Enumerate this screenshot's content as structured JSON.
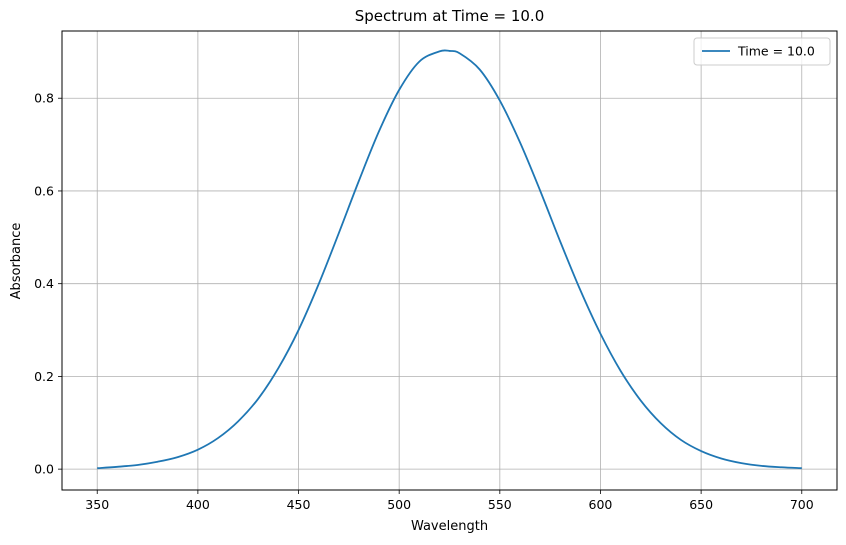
{
  "chart_data": {
    "type": "line",
    "title": "Spectrum at Time = 10.0",
    "xlabel": "Wavelength",
    "ylabel": "Absorbance",
    "xlim": [
      332.5,
      717.5
    ],
    "ylim": [
      -0.045,
      0.945
    ],
    "xticks": [
      350,
      400,
      450,
      500,
      550,
      600,
      650,
      700
    ],
    "yticks": [
      0.0,
      0.2,
      0.4,
      0.6,
      0.8
    ],
    "ytick_labels": [
      "0.0",
      "0.2",
      "0.4",
      "0.6",
      "0.8"
    ],
    "grid": true,
    "legend_position": "top-right",
    "series": [
      {
        "name": "Time = 10.0",
        "color": "#1f77b4",
        "x": [
          350,
          360,
          370,
          380,
          390,
          400,
          410,
          420,
          430,
          440,
          450,
          460,
          470,
          480,
          490,
          500,
          510,
          520,
          525,
          530,
          540,
          550,
          560,
          570,
          580,
          590,
          600,
          610,
          620,
          630,
          640,
          650,
          660,
          670,
          680,
          690,
          700
        ],
        "y": [
          0.002,
          0.005,
          0.009,
          0.016,
          0.026,
          0.042,
          0.067,
          0.103,
          0.152,
          0.218,
          0.3,
          0.399,
          0.509,
          0.622,
          0.729,
          0.818,
          0.879,
          0.901,
          0.902,
          0.897,
          0.862,
          0.795,
          0.705,
          0.601,
          0.491,
          0.386,
          0.292,
          0.212,
          0.148,
          0.099,
          0.063,
          0.039,
          0.023,
          0.013,
          0.007,
          0.004,
          0.002
        ]
      }
    ]
  }
}
